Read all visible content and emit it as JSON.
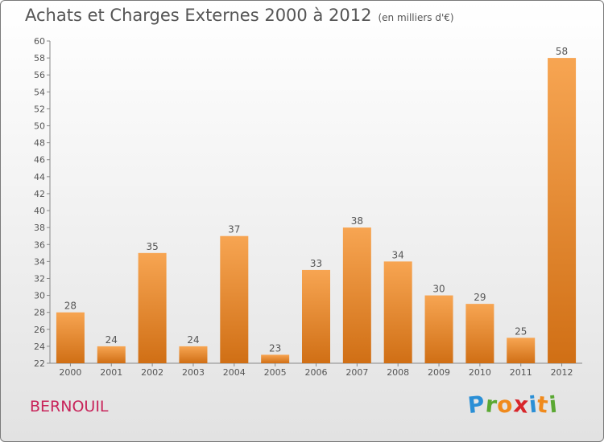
{
  "title": "Achats et Charges Externes 2000 à 2012",
  "subtitle": "(en milliers d'€)",
  "commune": "BERNOUIL",
  "logo": {
    "letters": [
      "P",
      "r",
      "o",
      "x",
      "i",
      "t",
      "i"
    ],
    "colors": [
      "#2a8fd6",
      "#5aa832",
      "#f08a1c",
      "#d8262b",
      "#2a8fd6",
      "#f08a1c",
      "#5aa832"
    ]
  },
  "colors": {
    "bar_light": "#f7a552",
    "bar_dark": "#d06f15",
    "text": "#555555",
    "commune": "#c8245a"
  },
  "chart_data": {
    "type": "bar",
    "title": "Achats et Charges Externes 2000 à 2012",
    "subtitle": "(en milliers d'€)",
    "categories": [
      "2000",
      "2001",
      "2002",
      "2003",
      "2004",
      "2005",
      "2006",
      "2007",
      "2008",
      "2009",
      "2010",
      "2011",
      "2012"
    ],
    "values": [
      28,
      24,
      35,
      24,
      37,
      23,
      33,
      38,
      34,
      30,
      29,
      25,
      58
    ],
    "ylim": [
      22,
      60
    ],
    "yticks": [
      22,
      24,
      26,
      28,
      30,
      32,
      34,
      36,
      38,
      40,
      42,
      44,
      46,
      48,
      50,
      52,
      54,
      56,
      58,
      60
    ],
    "grid": false,
    "data_labels": true
  }
}
